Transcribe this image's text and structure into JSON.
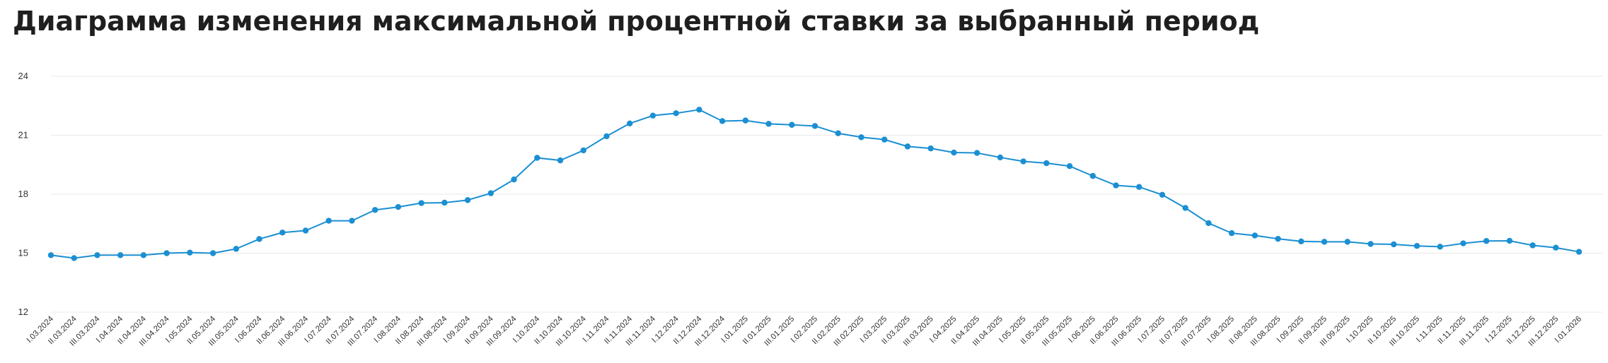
{
  "page": {
    "title": "Диаграмма изменения максимальной процентной ставки за выбранный период"
  },
  "colors": {
    "line": "#1b8fd2",
    "point": "#1b8fd2",
    "grid": "#e9e9e9",
    "title": "#1f1f1f",
    "tick_text": "#333333"
  },
  "chart_data": {
    "type": "line",
    "title": "Диаграмма изменения максимальной процентной ставки за выбранный период",
    "xlabel": "",
    "ylabel": "",
    "ylim": [
      12,
      24
    ],
    "yticks": [
      12,
      15,
      18,
      21,
      24
    ],
    "grid": true,
    "legend": "none",
    "categories": [
      "I.03.2024",
      "II.03.2024",
      "III.03.2024",
      "I.04.2024",
      "II.04.2024",
      "III.04.2024",
      "I.05.2024",
      "II.05.2024",
      "III.05.2024",
      "I.06.2024",
      "II.06.2024",
      "III.06.2024",
      "I.07.2024",
      "II.07.2024",
      "III.07.2024",
      "I.08.2024",
      "II.08.2024",
      "III.08.2024",
      "I.09.2024",
      "II.09.2024",
      "III.09.2024",
      "I.10.2024",
      "II.10.2024",
      "III.10.2024",
      "I.11.2024",
      "II.11.2024",
      "III.11.2024",
      "I.12.2024",
      "II.12.2024",
      "III.12.2024",
      "I.01.2025",
      "II.01.2025",
      "III.01.2025",
      "I.02.2025",
      "II.02.2025",
      "III.02.2025",
      "I.03.2025",
      "II.03.2025",
      "III.03.2025",
      "I.04.2025",
      "II.04.2025",
      "III.04.2025",
      "I.05.2025",
      "II.05.2025",
      "III.05.2025",
      "I.06.2025",
      "II.06.2025",
      "III.06.2025",
      "I.07.2025",
      "II.07.2025",
      "III.07.2025",
      "I.08.2025",
      "II.08.2025",
      "III.08.2025",
      "I.09.2025",
      "II.09.2025",
      "III.09.2025",
      "I.10.2025",
      "II.10.2025",
      "III.10.2025",
      "I.11.2025",
      "II.11.2025",
      "III.11.2025",
      "I.12.2025",
      "II.12.2025",
      "III.12.2025",
      "I.01.2026"
    ],
    "series": [
      {
        "values": [
          14.9,
          14.75,
          14.9,
          14.9,
          14.9,
          15.0,
          15.03,
          15.0,
          15.22,
          15.72,
          16.05,
          16.15,
          16.65,
          16.65,
          17.2,
          17.35,
          17.55,
          17.57,
          17.7,
          18.05,
          18.75,
          19.85,
          19.72,
          20.23,
          20.95,
          21.6,
          22.0,
          22.12,
          22.3,
          21.72,
          21.75,
          21.58,
          21.53,
          21.47,
          21.1,
          20.9,
          20.78,
          20.43,
          20.33,
          20.12,
          20.1,
          19.87,
          19.67,
          19.58,
          19.43,
          18.93,
          18.45,
          18.37,
          17.97,
          17.3,
          16.53,
          16.02,
          15.9,
          15.73,
          15.6,
          15.58,
          15.58,
          15.47,
          15.45,
          15.37,
          15.33,
          15.5,
          15.62,
          15.63,
          15.4,
          15.28,
          15.07
        ]
      }
    ]
  }
}
